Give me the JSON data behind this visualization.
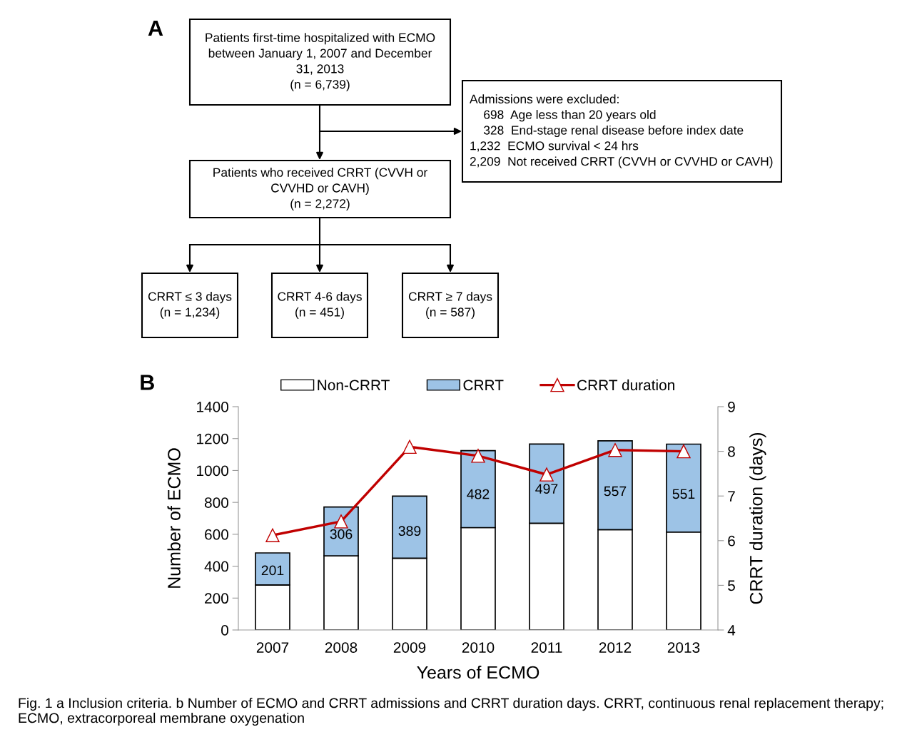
{
  "chart_data": [
    {
      "type": "other",
      "title": "A",
      "annotations": [
        "Patients first-time hospitalized with ECMO\nbetween January 1, 2007 and December\n31, 2013\n(n = 6,739)",
        "Admissions were excluded:\n    698  Age less than 20 years old\n    328  End-stage renal disease before index date\n1,232  ECMO survival < 24 hrs\n2,209  Not received CRRT (CVVH or CVVHD or CAVH)",
        "Patients who received CRRT (CVVH or\nCVVHD or CAVH)\n(n = 2,272)",
        "CRRT ≤ 3 days\n(n = 1,234)",
        "CRRT 4-6 days\n(n = 451)",
        "CRRT ≥ 7 days\n(n = 587)"
      ]
    },
    {
      "type": "bar",
      "title": "B",
      "stacked": true,
      "xlabel": "Years of ECMO",
      "ylabel": "Number of ECMO",
      "y2label": "CRRT duration (days)",
      "categories": [
        "2007",
        "2008",
        "2009",
        "2010",
        "2011",
        "2012",
        "2013"
      ],
      "series": [
        {
          "name": "Non-CRRT",
          "type": "bar",
          "color": "#ffffff",
          "values": [
            282,
            465,
            450,
            642,
            669,
            629,
            614
          ]
        },
        {
          "name": "CRRT",
          "type": "bar",
          "color": "#9dc3e6",
          "values": [
            201,
            306,
            389,
            482,
            497,
            557,
            551
          ],
          "value_labels": [
            "201",
            "306",
            "389",
            "482",
            "497",
            "557",
            "551"
          ]
        },
        {
          "name": "CRRT duration",
          "type": "line",
          "axis": "y2",
          "color": "#c00000",
          "marker": "triangle",
          "values": [
            6.12,
            6.43,
            8.1,
            7.9,
            7.48,
            8.03,
            8.0
          ]
        }
      ],
      "ylim": [
        0,
        1400
      ],
      "yticks": [
        0,
        200,
        400,
        600,
        800,
        1000,
        1200,
        1400
      ],
      "y2lim": [
        4,
        9
      ],
      "y2ticks": [
        4,
        5,
        6,
        7,
        8,
        9
      ],
      "legend": "top",
      "annotations": [
        "Fig. 1 a Inclusion criteria. b Number of ECMO and CRRT admissions and CRRT duration days. CRRT, continuous renal replacement therapy; ECMO, extracorporeal membrane oxygenation"
      ]
    }
  ]
}
